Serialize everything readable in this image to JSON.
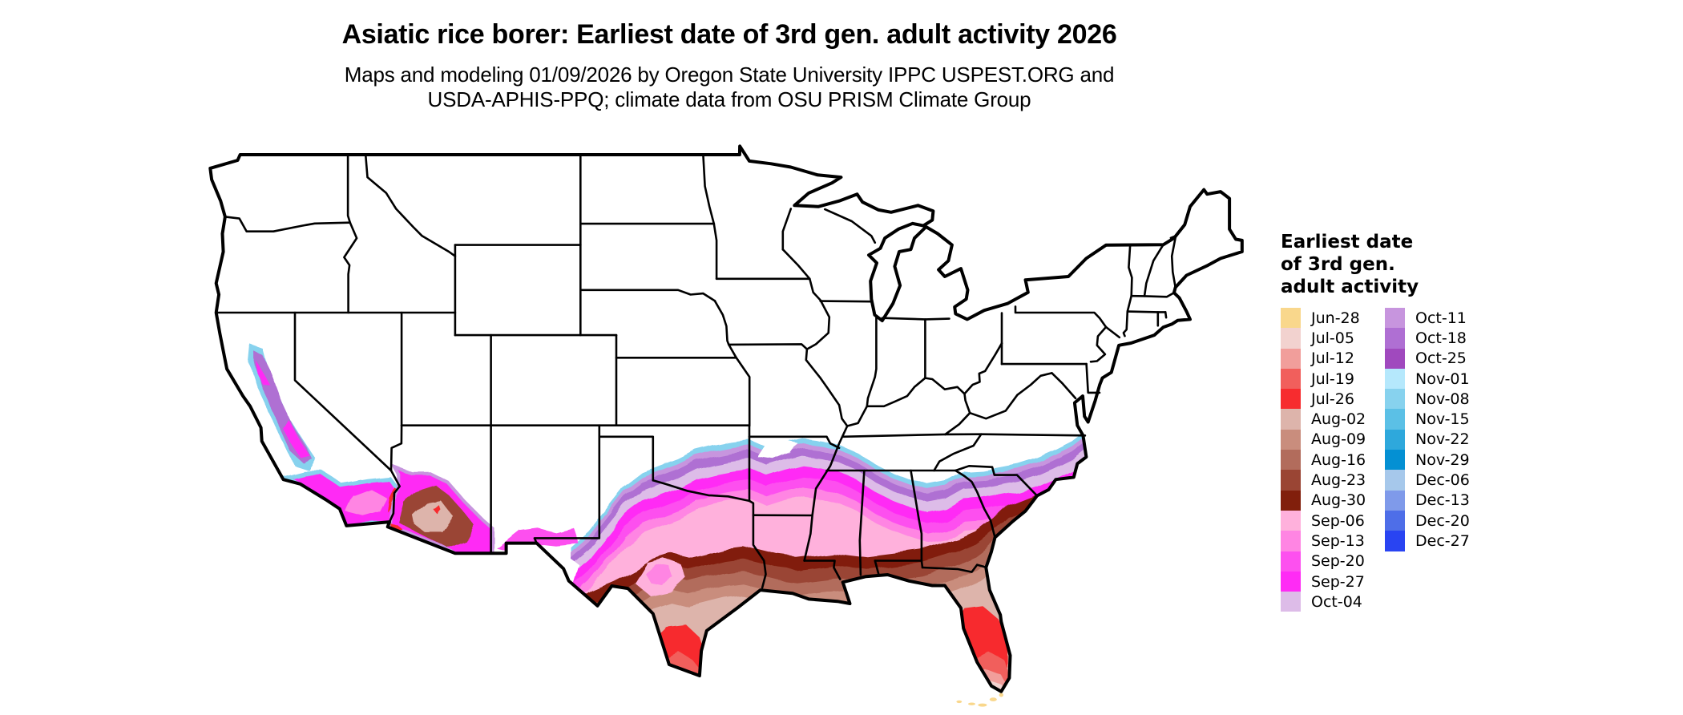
{
  "header": {
    "title": "Asiatic rice borer: Earliest date of 3rd gen. adult activity 2026",
    "subtitle_line1": "Maps and modeling 01/09/2026 by Oregon State University IPPC USPEST.ORG and",
    "subtitle_line2": "USDA-APHIS-PPQ; climate data from OSU PRISM Climate Group"
  },
  "legend": {
    "title_lines": [
      "Earliest date",
      "of 3rd gen.",
      "adult activity"
    ],
    "columns": [
      {
        "items": [
          {
            "label": "Jun-28",
            "color": "#F9D78C"
          },
          {
            "label": "Jul-05",
            "color": "#F2D2CF"
          },
          {
            "label": "Jul-12",
            "color": "#F19E9B"
          },
          {
            "label": "Jul-19",
            "color": "#F15F5C"
          },
          {
            "label": "Jul-26",
            "color": "#F72C2F"
          },
          {
            "label": "Aug-02",
            "color": "#DDB4AB"
          },
          {
            "label": "Aug-09",
            "color": "#C98D7D"
          },
          {
            "label": "Aug-16",
            "color": "#B26C5C"
          },
          {
            "label": "Aug-23",
            "color": "#9A4534"
          },
          {
            "label": "Aug-30",
            "color": "#811F0C"
          },
          {
            "label": "Sep-06",
            "color": "#FFB1DC"
          },
          {
            "label": "Sep-13",
            "color": "#FF85E3"
          },
          {
            "label": "Sep-20",
            "color": "#FD50EF"
          },
          {
            "label": "Sep-27",
            "color": "#FF2BF5"
          },
          {
            "label": "Oct-04",
            "color": "#DDBCE8"
          }
        ]
      },
      {
        "items": [
          {
            "label": "Oct-11",
            "color": "#C795DE"
          },
          {
            "label": "Oct-18",
            "color": "#AF6FD3"
          },
          {
            "label": "Oct-25",
            "color": "#A049BE"
          },
          {
            "label": "Nov-01",
            "color": "#B5E8FC"
          },
          {
            "label": "Nov-08",
            "color": "#87D2EE"
          },
          {
            "label": "Nov-15",
            "color": "#5BC0E6"
          },
          {
            "label": "Nov-22",
            "color": "#2EA8DC"
          },
          {
            "label": "Nov-29",
            "color": "#0490D3"
          },
          {
            "label": "Dec-06",
            "color": "#A6C8EB"
          },
          {
            "label": "Dec-13",
            "color": "#7F9AEA"
          },
          {
            "label": "Dec-20",
            "color": "#4E6EE8"
          },
          {
            "label": "Dec-27",
            "color": "#2944F2"
          }
        ]
      }
    ]
  },
  "map_style": {
    "background": "#FFFFFF",
    "state_border": "#000000"
  }
}
